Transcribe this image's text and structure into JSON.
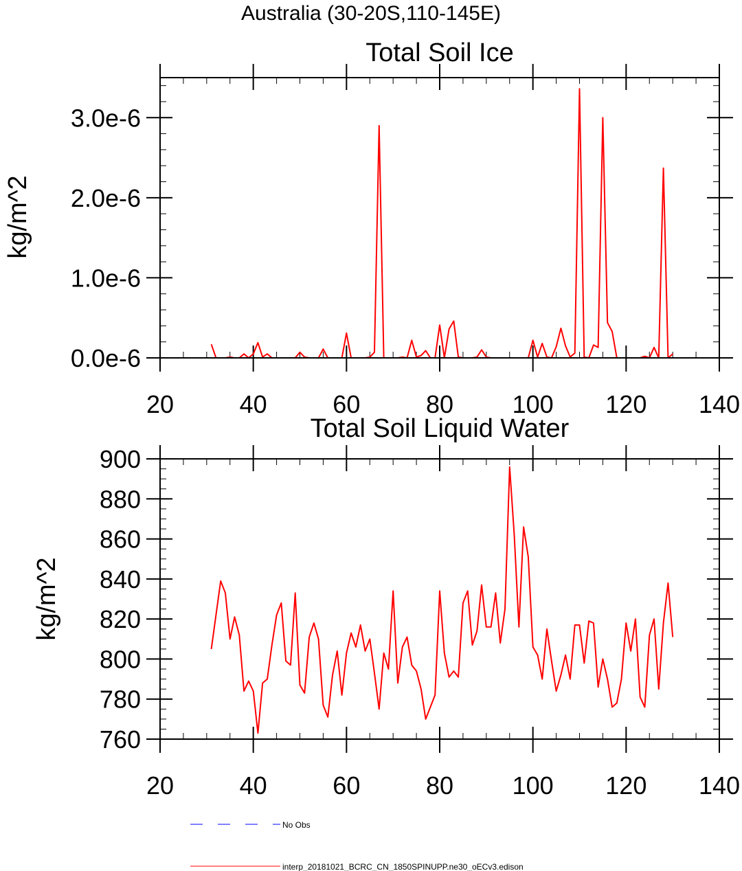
{
  "figure": {
    "suptitle": "Australia (30-20S,110-145E)",
    "colors": {
      "model": "#ff0000",
      "obs": "#0000ff",
      "axis": "#000000",
      "background": "#ffffff"
    }
  },
  "legend": {
    "entries": [
      {
        "label": "No Obs",
        "style": "dashed",
        "color": "#0000ff"
      },
      {
        "label": "interp_20181021_BCRC_CN_1850SPINUPP.ne30_oECv3.edison",
        "style": "solid",
        "color": "#ff0000"
      }
    ]
  },
  "chart_data": [
    {
      "type": "line",
      "title": "Total Soil Ice",
      "xlabel": "",
      "ylabel": "kg/m^2",
      "xlim": [
        20,
        140
      ],
      "ylim": [
        0,
        3.5e-06
      ],
      "xticks": [
        20,
        40,
        60,
        80,
        100,
        120,
        140
      ],
      "xtick_labels": [
        "20",
        "40",
        "60",
        "80",
        "100",
        "120",
        "140"
      ],
      "yticks": [
        0,
        1e-06,
        2e-06,
        3e-06
      ],
      "ytick_labels": [
        "0.0e-6",
        "1.0e-6",
        "2.0e-6",
        "3.0e-6"
      ],
      "grid": false,
      "series": [
        {
          "name": "interp_20181021_BCRC_CN_1850SPINUPP.ne30_oECv3.edison",
          "color": "#ff0000",
          "x": [
            31,
            32,
            33,
            34,
            35,
            36,
            37,
            38,
            39,
            40,
            41,
            42,
            43,
            44,
            45,
            46,
            47,
            48,
            49,
            50,
            51,
            52,
            53,
            54,
            55,
            56,
            57,
            58,
            59,
            60,
            61,
            62,
            63,
            64,
            65,
            66,
            67,
            68,
            69,
            70,
            71,
            72,
            73,
            74,
            75,
            76,
            77,
            78,
            79,
            80,
            81,
            82,
            83,
            84,
            85,
            86,
            87,
            88,
            89,
            90,
            91,
            92,
            93,
            94,
            95,
            96,
            97,
            98,
            99,
            100,
            101,
            102,
            103,
            104,
            105,
            106,
            107,
            108,
            109,
            110,
            111,
            112,
            113,
            114,
            115,
            116,
            117,
            118,
            119,
            120,
            121,
            122,
            123,
            124,
            125,
            126,
            127,
            128,
            129,
            130
          ],
          "values": [
            1.7e-07,
            0,
            0,
            0,
            1e-08,
            0,
            0,
            5e-08,
            0,
            5e-08,
            1.9e-07,
            1e-08,
            5e-08,
            0,
            0,
            0,
            0,
            0,
            0,
            7e-08,
            1e-08,
            0,
            0,
            0,
            1.1e-07,
            0,
            0,
            0,
            0,
            3.1e-07,
            0,
            0,
            0,
            0,
            1e-08,
            7e-08,
            2.9e-06,
            0,
            0,
            0,
            0,
            1e-08,
            0,
            2.2e-07,
            1e-08,
            3e-08,
            9e-08,
            0,
            0,
            4.1e-07,
            0,
            3.6e-07,
            4.6e-07,
            1e-08,
            0,
            0,
            0,
            1e-08,
            1e-07,
            1e-08,
            0,
            0,
            0,
            0,
            0,
            0,
            0,
            0,
            0,
            2.2e-07,
            1e-08,
            1.8e-07,
            1e-08,
            0,
            1.4e-07,
            3.7e-07,
            1.5e-07,
            1e-08,
            6e-08,
            3.36e-06,
            1e-08,
            0,
            1.6e-07,
            1.3e-07,
            3e-06,
            4.4e-07,
            3.3e-07,
            0,
            0,
            0,
            0,
            0,
            0,
            2e-08,
            0,
            1.3e-07,
            0,
            2.37e-06,
            0,
            5e-08
          ]
        }
      ]
    },
    {
      "type": "line",
      "title": "Total Soil Liquid Water",
      "xlabel": "",
      "ylabel": "kg/m^2",
      "xlim": [
        20,
        140
      ],
      "ylim": [
        760,
        900
      ],
      "xticks": [
        20,
        40,
        60,
        80,
        100,
        120,
        140
      ],
      "xtick_labels": [
        "20",
        "40",
        "60",
        "80",
        "100",
        "120",
        "140"
      ],
      "yticks": [
        760,
        780,
        800,
        820,
        840,
        860,
        880,
        900
      ],
      "ytick_labels": [
        "760",
        "780",
        "800",
        "820",
        "840",
        "860",
        "880",
        "900"
      ],
      "grid": false,
      "series": [
        {
          "name": "interp_20181021_BCRC_CN_1850SPINUPP.ne30_oECv3.edison",
          "color": "#ff0000",
          "x": [
            31,
            32,
            33,
            34,
            35,
            36,
            37,
            38,
            39,
            40,
            41,
            42,
            43,
            44,
            45,
            46,
            47,
            48,
            49,
            50,
            51,
            52,
            53,
            54,
            55,
            56,
            57,
            58,
            59,
            60,
            61,
            62,
            63,
            64,
            65,
            66,
            67,
            68,
            69,
            70,
            71,
            72,
            73,
            74,
            75,
            76,
            77,
            78,
            79,
            80,
            81,
            82,
            83,
            84,
            85,
            86,
            87,
            88,
            89,
            90,
            91,
            92,
            93,
            94,
            95,
            96,
            97,
            98,
            99,
            100,
            101,
            102,
            103,
            104,
            105,
            106,
            107,
            108,
            109,
            110,
            111,
            112,
            113,
            114,
            115,
            116,
            117,
            118,
            119,
            120,
            121,
            122,
            123,
            124,
            125,
            126,
            127,
            128,
            129,
            130
          ],
          "values": [
            805,
            822,
            839,
            833,
            810,
            821,
            812,
            784,
            789,
            784,
            763,
            788,
            790,
            807,
            822,
            828,
            799,
            797,
            833,
            787,
            783,
            811,
            818,
            810,
            777,
            771,
            792,
            804,
            782,
            803,
            813,
            806,
            817,
            804,
            810,
            793,
            775,
            803,
            795,
            834,
            788,
            806,
            811,
            797,
            794,
            785,
            770,
            776,
            782,
            834,
            803,
            791,
            794,
            791,
            828,
            834,
            807,
            814,
            837,
            816,
            816,
            833,
            808,
            825,
            896,
            862,
            816,
            866,
            851,
            806,
            802,
            790,
            815,
            799,
            784,
            792,
            802,
            790,
            817,
            817,
            798,
            819,
            818,
            786,
            800,
            790,
            776,
            778,
            790,
            818,
            804,
            820,
            781,
            776,
            812,
            820,
            785,
            818,
            838,
            811
          ]
        }
      ]
    }
  ]
}
